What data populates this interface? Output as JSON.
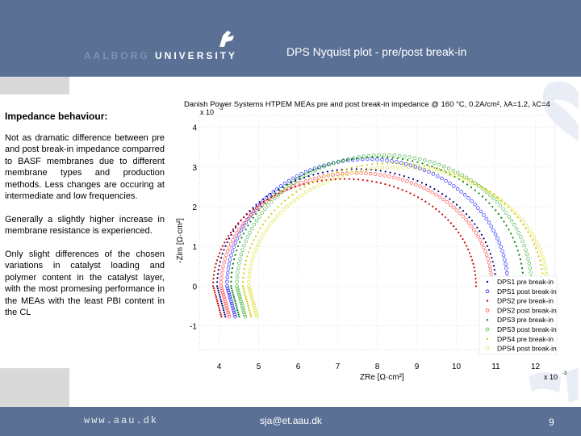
{
  "header": {
    "logo_text_a": "AALBORG",
    "logo_text_b": "UNIVERSITY",
    "title": "DPS Nyquist plot - pre/post break-in"
  },
  "body": {
    "heading": "Impedance behaviour:",
    "paragraphs": [
      "Not as dramatic difference between pre and post break-in impedance comparred to BASF membranes due to different membrane types and production methods. Less changes are occuring at intermediate and low frequencies.",
      "Generally a slightly higher increase in membrane resistance is experienced.",
      "Only slight differences of the chosen variations in catalyst loading and polymer content in the catalyst layer, with the most promesing performance in the MEAs with the least PBI content in the CL"
    ]
  },
  "footer": {
    "url": "www.aau.dk",
    "email": "sja@et.aau.dk",
    "page": "9"
  },
  "colors": {
    "brand": "#5a7094",
    "panel": "#d9d9d9"
  },
  "chart_data": {
    "type": "scatter",
    "title": "Danish Power Systems HTPEM MEAs pre and post break-in impedance @ 160 °C, 0.2A/cm², λA=1.2, λC=4",
    "y_multiplier": "x 10",
    "y_multiplier_exp": "-3",
    "x_multiplier": "x 10",
    "x_multiplier_exp": "-3",
    "xlabel": "ZRe [Ω·cm²]",
    "ylabel": "-Zim [Ω·cm²]",
    "xlim": [
      3.5,
      12.5
    ],
    "ylim": [
      -1.6,
      4.3
    ],
    "xticks": [
      4,
      5,
      6,
      7,
      8,
      9,
      10,
      11,
      12
    ],
    "yticks": [
      -1,
      0,
      1,
      2,
      3,
      4
    ],
    "legend_position": "bottom-right",
    "series": [
      {
        "name": "DPS1 pre break-in",
        "color": "#000080",
        "marker": "dot",
        "x0": 3.95,
        "x1": 11.0,
        "peak": 2.95
      },
      {
        "name": "DPS1 post break-in",
        "color": "#0000ff",
        "marker": "circle",
        "x0": 4.2,
        "x1": 11.3,
        "peak": 3.2
      },
      {
        "name": "DPS2 pre break-in",
        "color": "#cc0000",
        "marker": "dot",
        "x0": 3.85,
        "x1": 10.5,
        "peak": 2.7
      },
      {
        "name": "DPS2 post break-in",
        "color": "#ff3333",
        "marker": "circle",
        "x0": 4.05,
        "x1": 10.9,
        "peak": 2.85
      },
      {
        "name": "DPS3 pre break-in",
        "color": "#008800",
        "marker": "dot",
        "x0": 4.3,
        "x1": 11.7,
        "peak": 3.25
      },
      {
        "name": "DPS3 post break-in",
        "color": "#33aa33",
        "marker": "circle",
        "x0": 4.45,
        "x1": 11.9,
        "peak": 3.3
      },
      {
        "name": "DPS4 pre break-in",
        "color": "#cccc00",
        "marker": "dot",
        "x0": 4.6,
        "x1": 12.2,
        "peak": 3.1
      },
      {
        "name": "DPS4 post break-in",
        "color": "#dddd33",
        "marker": "circle",
        "x0": 4.75,
        "x1": 12.3,
        "peak": 3.0
      }
    ]
  }
}
